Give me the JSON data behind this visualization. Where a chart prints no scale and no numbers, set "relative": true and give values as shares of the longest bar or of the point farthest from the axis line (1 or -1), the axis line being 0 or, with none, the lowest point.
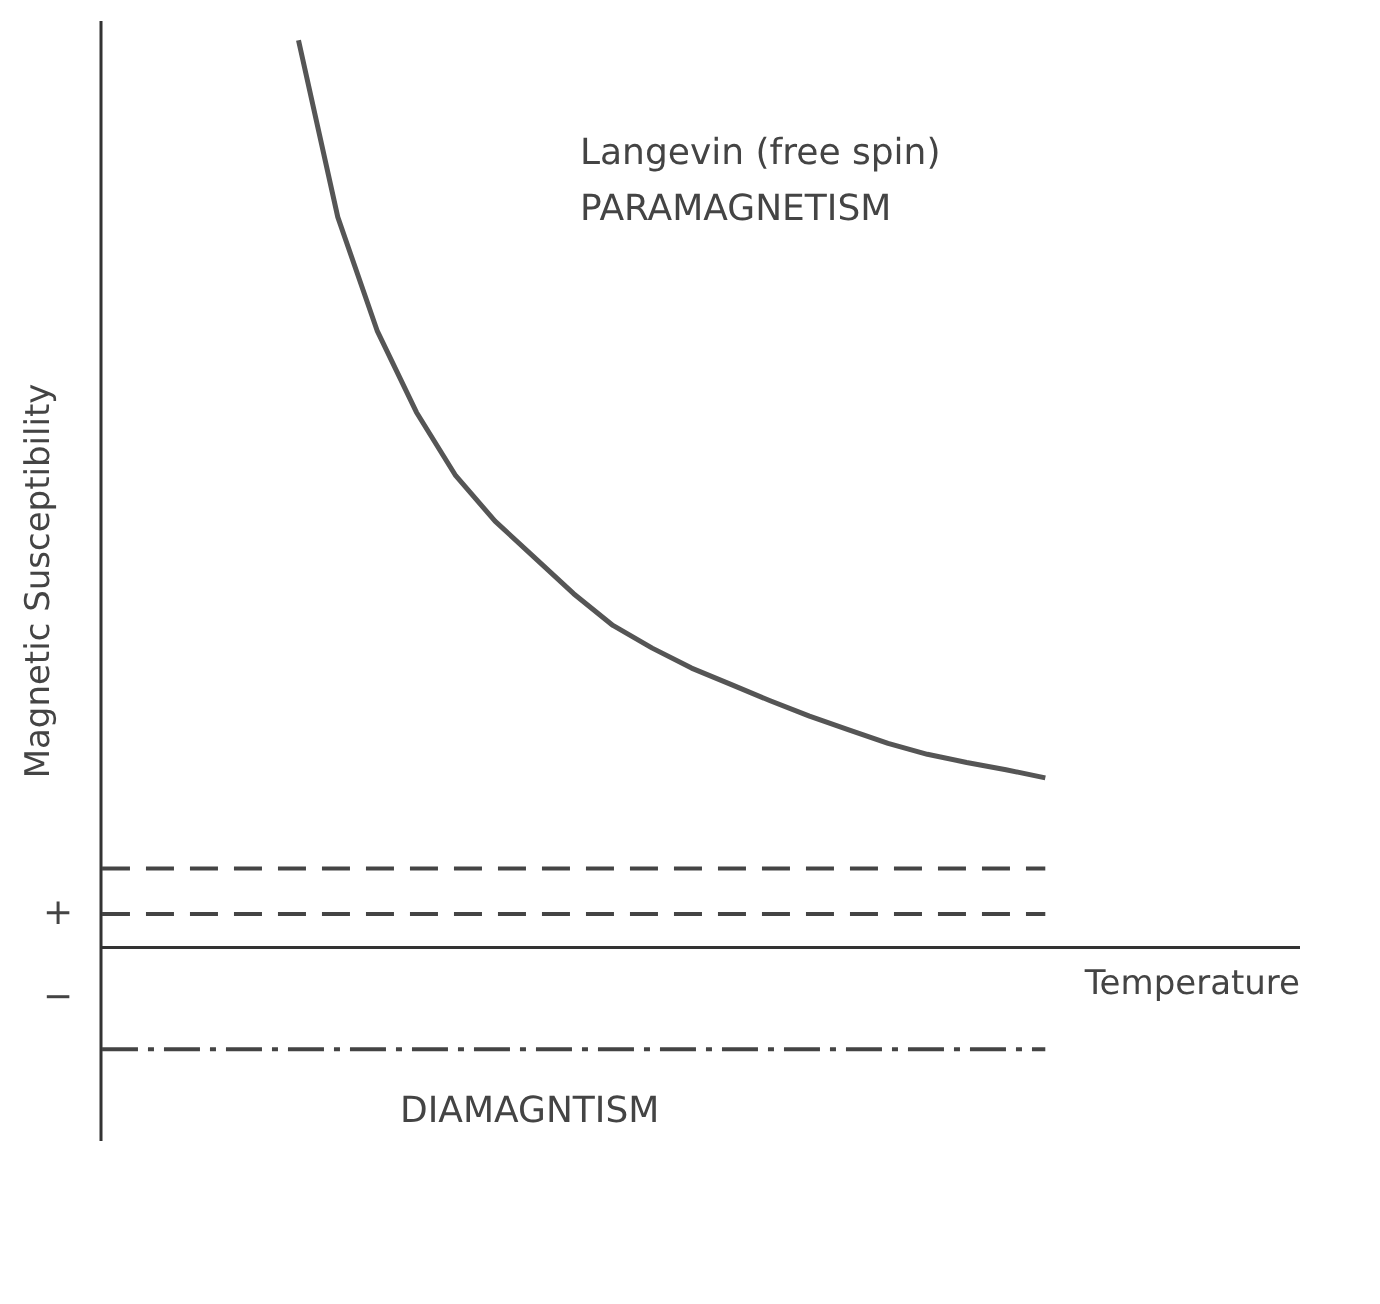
{
  "chart_data": {
    "type": "line",
    "relative": true,
    "xlabel": "Temperature",
    "ylabel": "Magnetic Susceptibility",
    "grid": false,
    "marker": "none",
    "categories": [
      null,
      null,
      null,
      null,
      null,
      null,
      null,
      null,
      null,
      null,
      null,
      null,
      null,
      null,
      null,
      null,
      null,
      null,
      null,
      null,
      null,
      null,
      null,
      null,
      null
    ],
    "series": [
      {
        "color": "#555555",
        "line_style": "solid",
        "values": [
          null,
          null,
          null,
          null,
          null,
          1.0,
          0.805,
          0.68,
          0.59,
          0.52,
          0.47,
          0.43,
          0.39,
          0.355,
          0.33,
          0.308,
          0.29,
          0.272,
          0.255,
          0.24,
          0.225,
          0.213,
          0.204,
          0.196,
          0.187
        ]
      },
      {
        "color": "#444444",
        "line_style": "dashed",
        "values": [
          0.087,
          0.087,
          0.087,
          0.087,
          0.087,
          0.087,
          0.087,
          0.087,
          0.087,
          0.087,
          0.087,
          0.087,
          0.087,
          0.087,
          0.087,
          0.087,
          0.087,
          0.087,
          0.087,
          0.087,
          0.087,
          0.087,
          0.087,
          0.087,
          0.087
        ]
      },
      {
        "color": "#444444",
        "line_style": "dashed",
        "values": [
          0.037,
          0.037,
          0.037,
          0.037,
          0.037,
          0.037,
          0.037,
          0.037,
          0.037,
          0.037,
          0.037,
          0.037,
          0.037,
          0.037,
          0.037,
          0.037,
          0.037,
          0.037,
          0.037,
          0.037,
          0.037,
          0.037,
          0.037,
          0.037,
          0.037
        ]
      },
      {
        "color": "#444444",
        "line_style": "dashdot",
        "values": [
          -0.112,
          -0.112,
          -0.112,
          -0.112,
          -0.112,
          -0.112,
          -0.112,
          -0.112,
          -0.112,
          -0.112,
          -0.112,
          -0.112,
          -0.112,
          -0.112,
          -0.112,
          -0.112,
          -0.112,
          -0.112,
          -0.112,
          -0.112,
          -0.112,
          -0.112,
          -0.112,
          -0.112,
          -0.112
        ]
      }
    ],
    "annotations": [
      "Langevin (free spin)",
      "PARAMAGNETISM",
      "DIAMAGNTISM",
      "+",
      "−"
    ]
  }
}
